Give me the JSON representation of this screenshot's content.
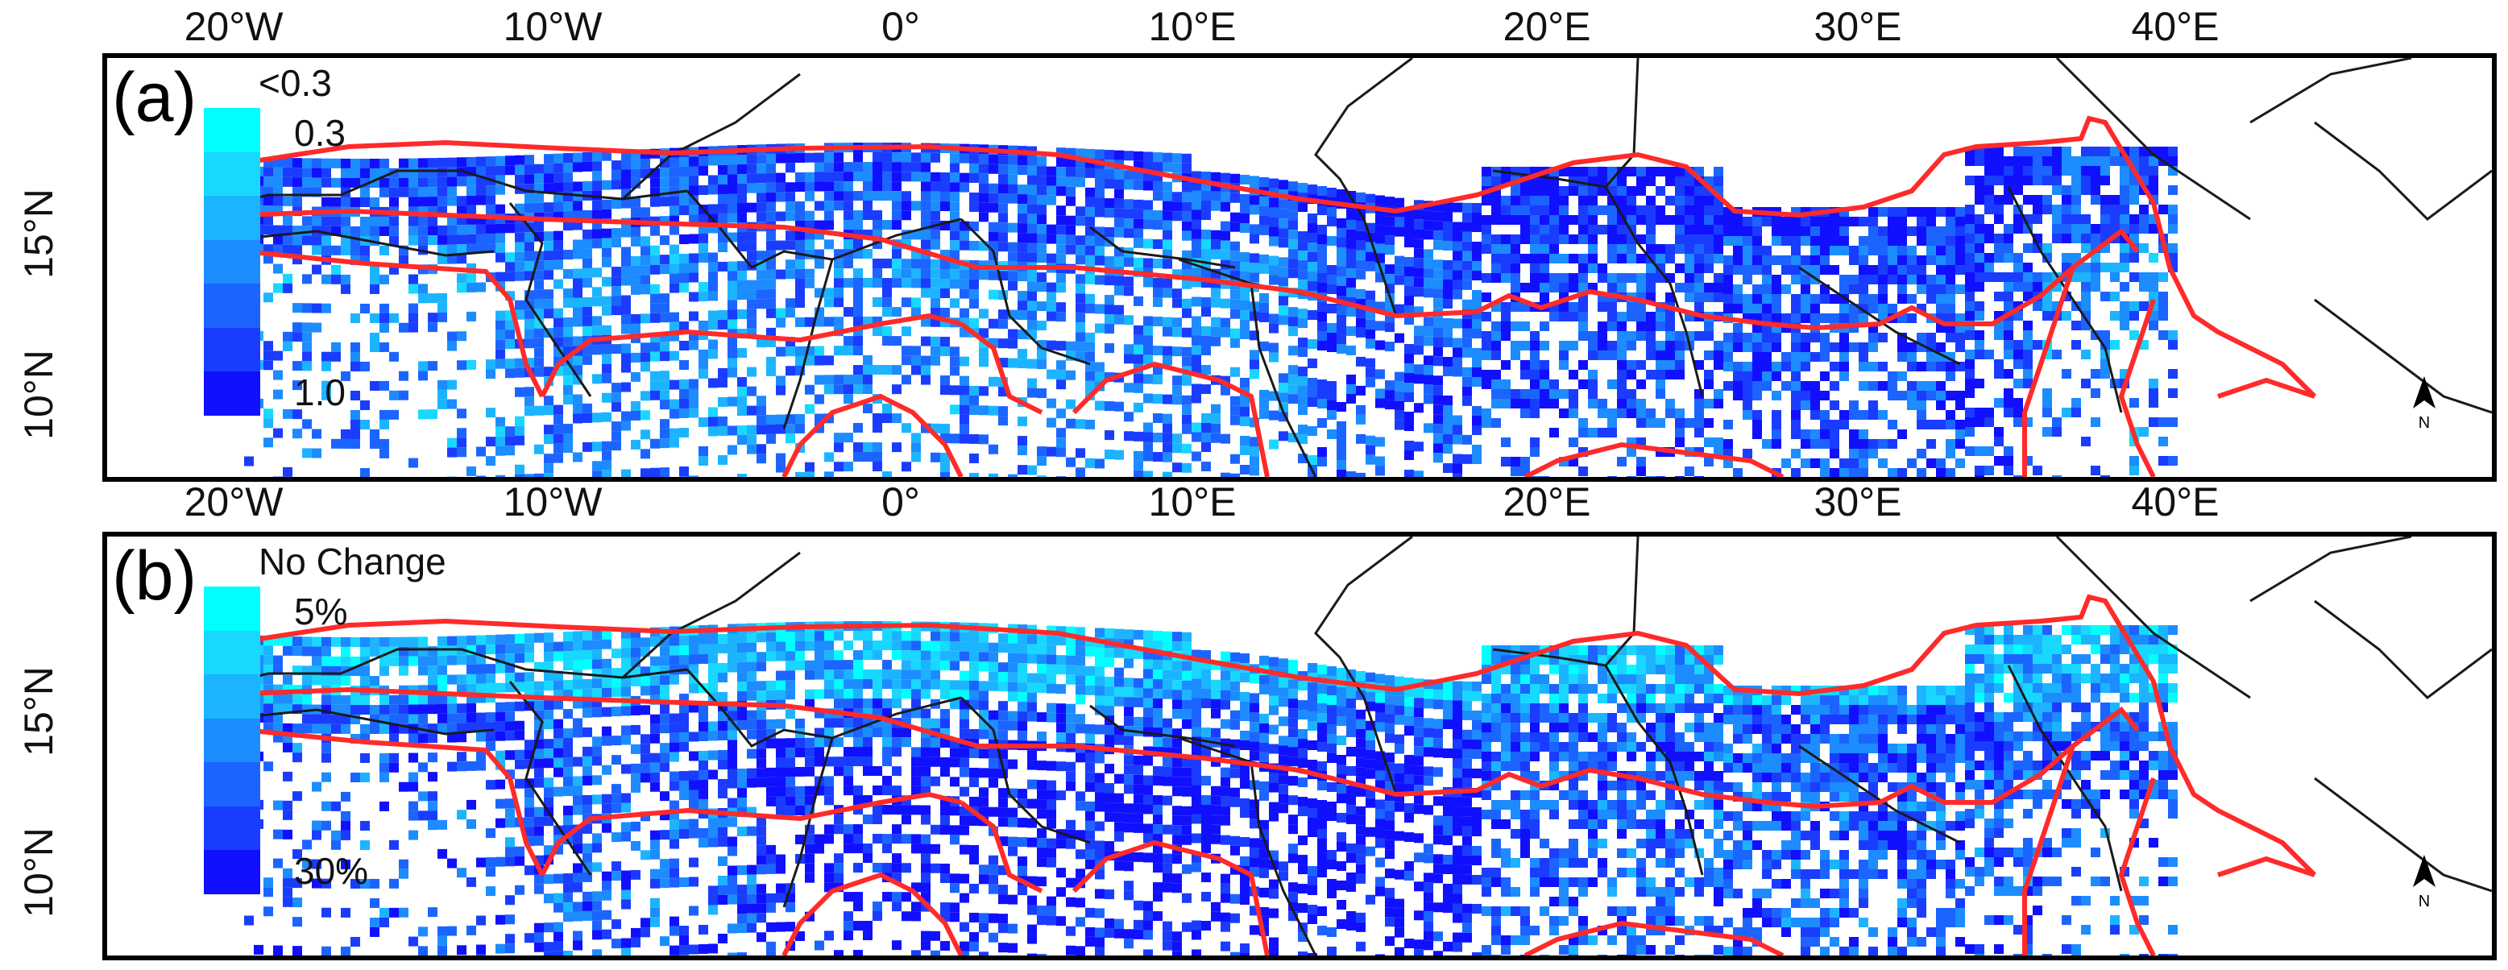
{
  "longitude_ticks": [
    "20°W",
    "10°W",
    "0°",
    "10°E",
    "20°E",
    "30°E",
    "40°E"
  ],
  "latitude_ticks": [
    "15°N",
    "10°N"
  ],
  "colors": {
    "zone_boundary": "#ff2a2a",
    "country_border": "#1a1a1a",
    "ramp": [
      "#00ffff",
      "#18d8ff",
      "#1cb4ff",
      "#1c8cff",
      "#1c64ff",
      "#1a3cff",
      "#1010ff"
    ]
  },
  "panels": [
    {
      "label": "(a)",
      "legend": {
        "title": "<0.3",
        "top_label": "0.3",
        "bottom_label": "1.0"
      },
      "north_label": "N"
    },
    {
      "label": "(b)",
      "legend": {
        "title": "No Change",
        "top_label": "5%",
        "bottom_label": "30%"
      },
      "north_label": "N"
    }
  ]
}
